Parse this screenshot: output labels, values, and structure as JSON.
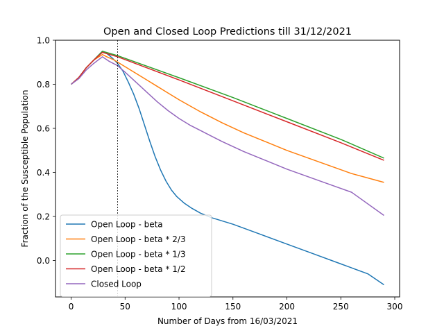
{
  "chart_data": {
    "type": "line",
    "title": "Open and Closed Loop Predictions till 31/12/2021",
    "xlabel": "Number of Days from 16/03/2021",
    "ylabel": "Fraction of the Susceptible Population",
    "xlim": [
      -14.5,
      304.5
    ],
    "ylim": [
      -0.165,
      1.0
    ],
    "xticks": [
      0,
      50,
      100,
      150,
      200,
      250,
      300
    ],
    "yticks": [
      0.0,
      0.2,
      0.4,
      0.6,
      0.8,
      1.0
    ],
    "xtick_labels": [
      "0",
      "50",
      "100",
      "150",
      "200",
      "250",
      "300"
    ],
    "ytick_labels": [
      "0.0",
      "0.2",
      "0.4",
      "0.6",
      "0.8",
      "1.0"
    ],
    "vline_x": 43,
    "legend_position": "lower-left",
    "grid": false,
    "series": [
      {
        "name": "Open Loop - beta",
        "color": "#1f77b4",
        "points": [
          [
            0,
            0.8
          ],
          [
            7,
            0.83
          ],
          [
            14,
            0.875
          ],
          [
            21,
            0.91
          ],
          [
            29,
            0.95
          ],
          [
            33,
            0.94
          ],
          [
            38,
            0.92
          ],
          [
            43,
            0.895
          ],
          [
            48,
            0.86
          ],
          [
            53,
            0.81
          ],
          [
            58,
            0.755
          ],
          [
            63,
            0.69
          ],
          [
            68,
            0.615
          ],
          [
            73,
            0.54
          ],
          [
            78,
            0.47
          ],
          [
            83,
            0.41
          ],
          [
            88,
            0.36
          ],
          [
            93,
            0.32
          ],
          [
            98,
            0.29
          ],
          [
            105,
            0.26
          ],
          [
            112,
            0.237
          ],
          [
            120,
            0.215
          ],
          [
            130,
            0.195
          ],
          [
            140,
            0.18
          ],
          [
            150,
            0.165
          ],
          [
            175,
            0.12
          ],
          [
            200,
            0.075
          ],
          [
            225,
            0.03
          ],
          [
            250,
            -0.015
          ],
          [
            275,
            -0.06
          ],
          [
            290,
            -0.11
          ]
        ]
      },
      {
        "name": "Open Loop - beta * 2/3",
        "color": "#ff7f0e",
        "points": [
          [
            0,
            0.8
          ],
          [
            7,
            0.83
          ],
          [
            14,
            0.875
          ],
          [
            21,
            0.91
          ],
          [
            29,
            0.935
          ],
          [
            33,
            0.925
          ],
          [
            40,
            0.91
          ],
          [
            50,
            0.88
          ],
          [
            60,
            0.85
          ],
          [
            70,
            0.82
          ],
          [
            80,
            0.79
          ],
          [
            90,
            0.76
          ],
          [
            100,
            0.73
          ],
          [
            120,
            0.675
          ],
          [
            140,
            0.625
          ],
          [
            160,
            0.58
          ],
          [
            180,
            0.54
          ],
          [
            200,
            0.5
          ],
          [
            220,
            0.465
          ],
          [
            240,
            0.43
          ],
          [
            260,
            0.395
          ],
          [
            290,
            0.355
          ]
        ]
      },
      {
        "name": "Open Loop - beta * 1/3",
        "color": "#2ca02c",
        "points": [
          [
            0,
            0.8
          ],
          [
            7,
            0.83
          ],
          [
            14,
            0.875
          ],
          [
            21,
            0.91
          ],
          [
            29,
            0.95
          ],
          [
            43,
            0.93
          ],
          [
            100,
            0.83
          ],
          [
            150,
            0.74
          ],
          [
            200,
            0.645
          ],
          [
            250,
            0.55
          ],
          [
            290,
            0.465
          ]
        ]
      },
      {
        "name": "Open Loop - beta * 1/2",
        "color": "#d62728",
        "points": [
          [
            0,
            0.8
          ],
          [
            7,
            0.83
          ],
          [
            14,
            0.875
          ],
          [
            21,
            0.91
          ],
          [
            29,
            0.945
          ],
          [
            43,
            0.925
          ],
          [
            100,
            0.82
          ],
          [
            150,
            0.725
          ],
          [
            200,
            0.63
          ],
          [
            250,
            0.535
          ],
          [
            290,
            0.455
          ]
        ]
      },
      {
        "name": "Closed Loop",
        "color": "#9467bd",
        "points": [
          [
            0,
            0.8
          ],
          [
            7,
            0.825
          ],
          [
            14,
            0.865
          ],
          [
            21,
            0.895
          ],
          [
            29,
            0.925
          ],
          [
            35,
            0.905
          ],
          [
            43,
            0.885
          ],
          [
            50,
            0.855
          ],
          [
            60,
            0.81
          ],
          [
            70,
            0.765
          ],
          [
            80,
            0.72
          ],
          [
            90,
            0.68
          ],
          [
            100,
            0.645
          ],
          [
            110,
            0.615
          ],
          [
            120,
            0.59
          ],
          [
            130,
            0.565
          ],
          [
            140,
            0.54
          ],
          [
            160,
            0.495
          ],
          [
            180,
            0.455
          ],
          [
            200,
            0.415
          ],
          [
            220,
            0.38
          ],
          [
            240,
            0.345
          ],
          [
            260,
            0.31
          ],
          [
            290,
            0.205
          ]
        ]
      }
    ]
  }
}
